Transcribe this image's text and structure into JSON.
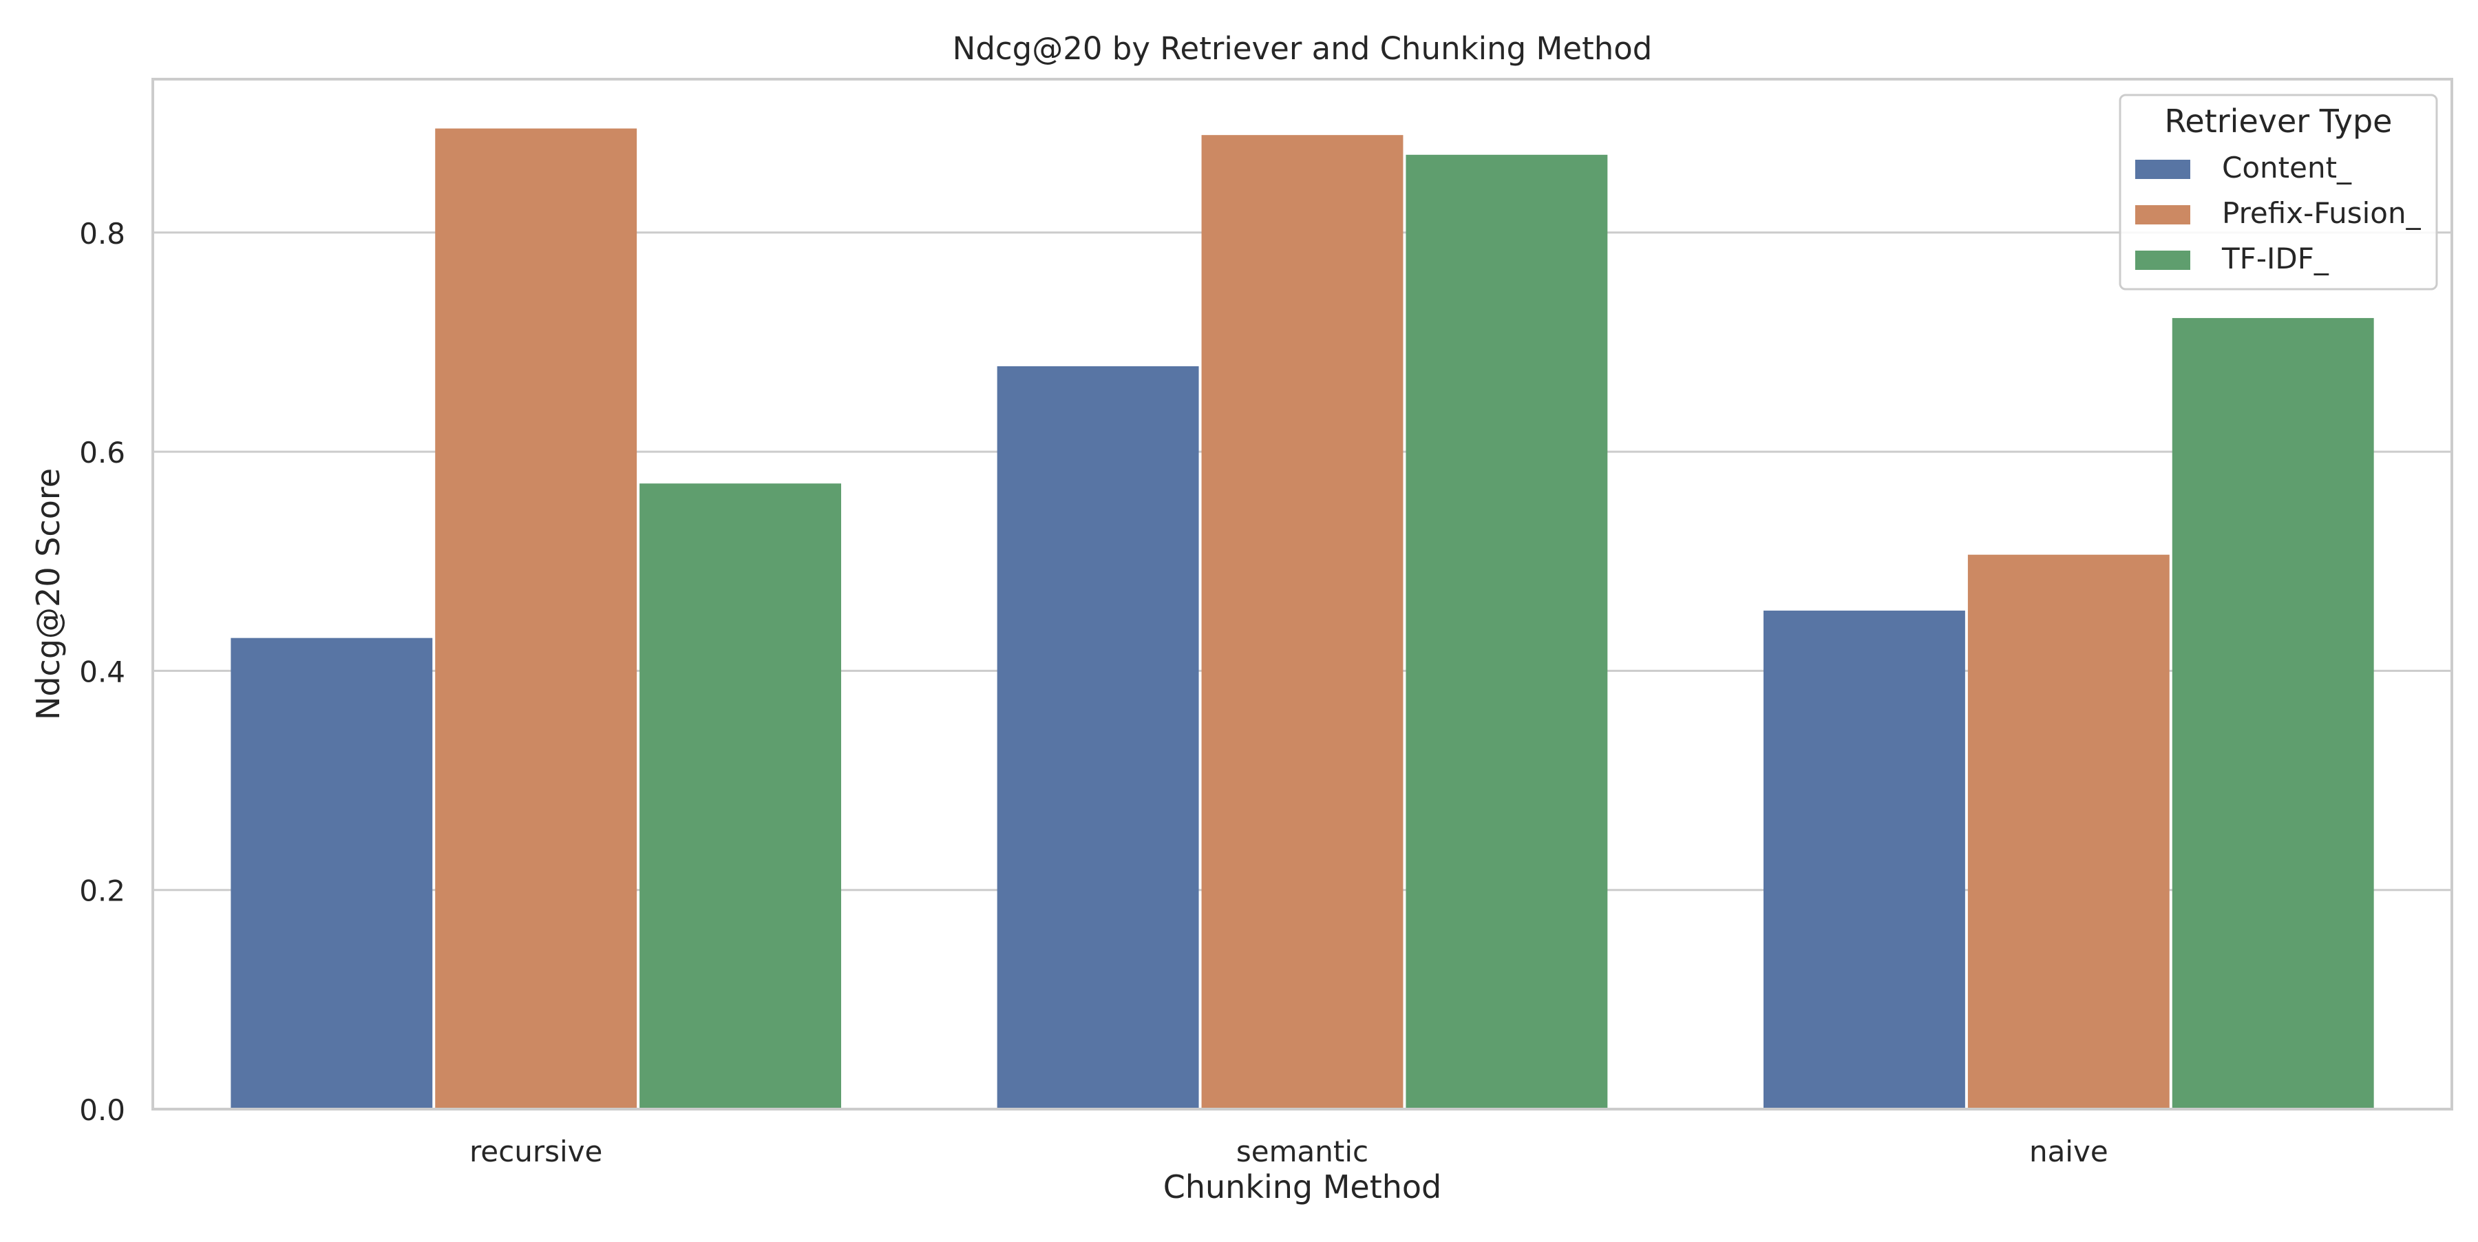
{
  "chart_data": {
    "type": "bar",
    "title": "Ndcg@20 by Retriever and Chunking Method",
    "xlabel": "Chunking Method",
    "ylabel": "Ndcg@20 Score",
    "categories": [
      "recursive",
      "semantic",
      "naive"
    ],
    "series": [
      {
        "name": "Content_",
        "values": [
          0.43,
          0.678,
          0.455
        ],
        "color": "#5875a4"
      },
      {
        "name": "Prefix-Fusion_",
        "values": [
          0.895,
          0.889,
          0.506
        ],
        "color": "#cc8963"
      },
      {
        "name": "TF-IDF_",
        "values": [
          0.571,
          0.871,
          0.722
        ],
        "color": "#5f9e6e"
      }
    ],
    "ylim": [
      0,
      0.94
    ],
    "yticks": [
      0.0,
      0.2,
      0.4,
      0.6,
      0.8
    ],
    "ytick_labels": [
      "0.0",
      "0.2",
      "0.4",
      "0.6",
      "0.8"
    ],
    "grid": "horizontal",
    "legend": {
      "title": "Retriever Type",
      "placement": "top-right"
    }
  }
}
